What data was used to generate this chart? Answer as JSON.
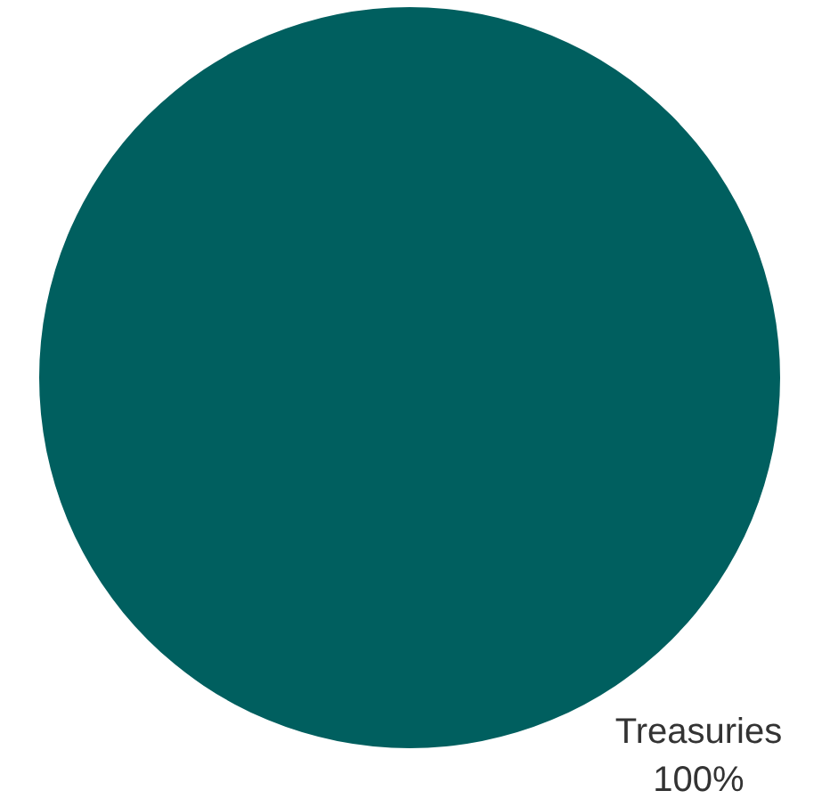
{
  "chart_data": {
    "type": "pie",
    "categories": [
      "Treasuries"
    ],
    "values": [
      100
    ],
    "colors": [
      "#005f5f"
    ],
    "value_labels": [
      "100%"
    ],
    "legend": false
  }
}
